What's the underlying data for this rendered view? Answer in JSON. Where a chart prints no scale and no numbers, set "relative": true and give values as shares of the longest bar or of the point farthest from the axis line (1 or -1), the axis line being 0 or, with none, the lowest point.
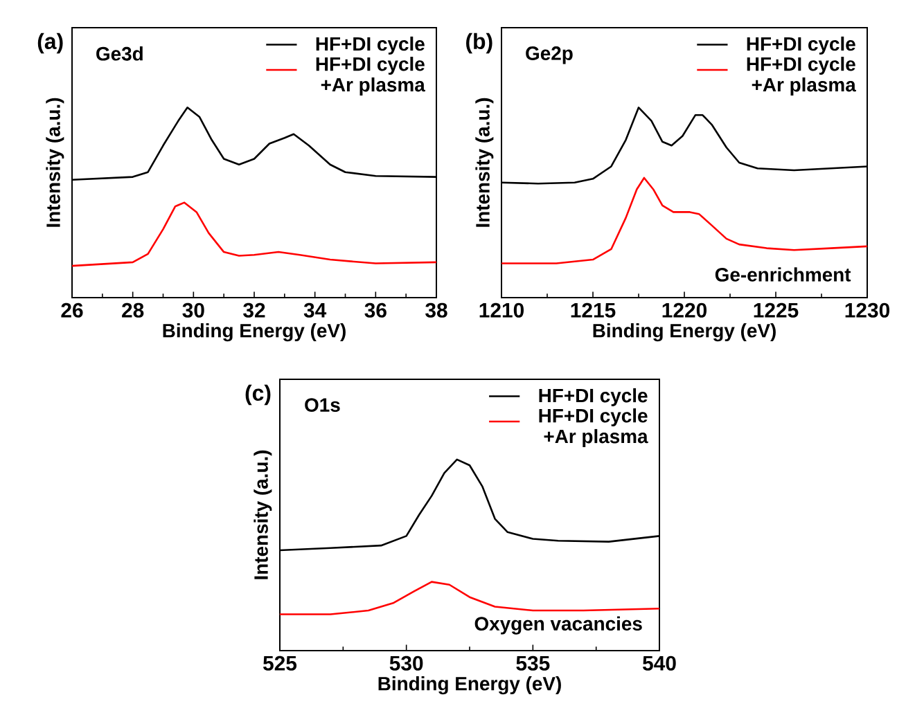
{
  "chart_data": [
    {
      "type": "line",
      "title": "(a)",
      "xlabel": "Binding Energy (eV)",
      "ylabel": "Intensity (a.u.)",
      "relative": true,
      "legend": "top right",
      "annotations": [
        "Ge3d"
      ],
      "xlim": [
        26,
        38
      ],
      "xticks": [
        26,
        28,
        30,
        32,
        34,
        36,
        38
      ],
      "series": [
        {
          "name": "HF+DI cycle",
          "color": "#000000",
          "x": [
            26,
            28,
            28.5,
            29,
            29.5,
            29.8,
            30.2,
            30.6,
            31,
            31.5,
            32,
            32.5,
            33,
            33.3,
            33.8,
            34.5,
            35,
            36,
            38
          ],
          "values": [
            0.62,
            0.635,
            0.66,
            0.8,
            0.93,
            1.0,
            0.95,
            0.83,
            0.73,
            0.7,
            0.73,
            0.81,
            0.84,
            0.86,
            0.8,
            0.7,
            0.66,
            0.64,
            0.635
          ]
        },
        {
          "name": "HF+DI cycle +Ar plasma",
          "color": "#ff0000",
          "x": [
            26,
            28,
            28.5,
            29,
            29.4,
            29.7,
            30.1,
            30.5,
            31,
            31.5,
            32,
            32.8,
            33.5,
            34.5,
            36,
            38
          ],
          "values": [
            0.167,
            0.186,
            0.23,
            0.36,
            0.48,
            0.5,
            0.45,
            0.34,
            0.24,
            0.22,
            0.225,
            0.24,
            0.225,
            0.2,
            0.18,
            0.186
          ]
        }
      ]
    },
    {
      "type": "line",
      "title": "(b)",
      "xlabel": "Binding Energy (eV)",
      "ylabel": "Intensity (a.u.)",
      "relative": true,
      "legend": "top right",
      "annotations": [
        "Ge2p",
        "Ge-enrichment"
      ],
      "xlim": [
        1210,
        1230
      ],
      "xticks": [
        1210,
        1215,
        1220,
        1225,
        1230
      ],
      "series": [
        {
          "name": "HF+DI cycle",
          "color": "#000000",
          "x": [
            1210,
            1212,
            1214,
            1215,
            1216,
            1216.8,
            1217.5,
            1218.2,
            1218.8,
            1219.3,
            1219.9,
            1220.6,
            1221,
            1221.5,
            1222.3,
            1223,
            1224,
            1226,
            1228,
            1230
          ],
          "values": [
            0.605,
            0.6,
            0.605,
            0.625,
            0.69,
            0.83,
            1.0,
            0.93,
            0.82,
            0.8,
            0.85,
            0.96,
            0.96,
            0.91,
            0.79,
            0.71,
            0.68,
            0.67,
            0.68,
            0.69
          ]
        },
        {
          "name": "HF+DI cycle +Ar plasma",
          "color": "#ff0000",
          "x": [
            1210,
            1213,
            1215,
            1216,
            1216.8,
            1217.4,
            1217.8,
            1218.3,
            1218.8,
            1219.4,
            1220.3,
            1220.8,
            1221.5,
            1222.3,
            1223,
            1224.5,
            1226,
            1228,
            1230
          ],
          "values": [
            0.18,
            0.18,
            0.2,
            0.255,
            0.42,
            0.57,
            0.63,
            0.57,
            0.485,
            0.45,
            0.45,
            0.44,
            0.38,
            0.31,
            0.28,
            0.26,
            0.25,
            0.26,
            0.27
          ]
        }
      ]
    },
    {
      "type": "line",
      "title": "(c)",
      "xlabel": "Binding Energy (eV)",
      "ylabel": "Intensity (a.u.)",
      "relative": true,
      "legend": "top right",
      "annotations": [
        "O1s",
        "Oxygen vacancies"
      ],
      "xlim": [
        525,
        540
      ],
      "xticks": [
        525,
        530,
        535,
        540
      ],
      "series": [
        {
          "name": "HF+DI cycle",
          "color": "#000000",
          "x": [
            525,
            527,
            529,
            530,
            530.5,
            531,
            531.5,
            532,
            532.5,
            533,
            533.5,
            534,
            535,
            536,
            538,
            540
          ],
          "values": [
            0.525,
            0.537,
            0.55,
            0.6,
            0.71,
            0.81,
            0.93,
            1.0,
            0.97,
            0.86,
            0.69,
            0.62,
            0.585,
            0.575,
            0.57,
            0.6
          ]
        },
        {
          "name": "HF+DI cycle +Ar plasma",
          "color": "#ff0000",
          "x": [
            525,
            527,
            528.5,
            529.5,
            530.3,
            531,
            531.7,
            532.5,
            533.5,
            535,
            537,
            540
          ],
          "values": [
            0.19,
            0.19,
            0.21,
            0.25,
            0.31,
            0.36,
            0.345,
            0.28,
            0.23,
            0.21,
            0.21,
            0.22
          ]
        }
      ]
    }
  ]
}
